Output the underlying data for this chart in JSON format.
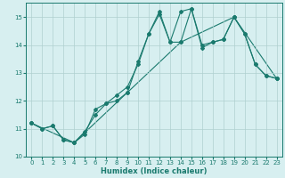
{
  "title": "",
  "xlabel": "Humidex (Indice chaleur)",
  "ylabel": "",
  "bg_color": "#d7eff0",
  "grid_color": "#afd0d0",
  "line_color": "#1a7a6e",
  "spine_color": "#1a7a6e",
  "tick_color": "#1a7a6e",
  "xlim": [
    -0.5,
    23.5
  ],
  "ylim": [
    10,
    15.5
  ],
  "yticks": [
    10,
    11,
    12,
    13,
    14,
    15
  ],
  "xticks": [
    0,
    1,
    2,
    3,
    4,
    5,
    6,
    7,
    8,
    9,
    10,
    11,
    12,
    13,
    14,
    15,
    16,
    17,
    18,
    19,
    20,
    21,
    22,
    23
  ],
  "series1_x": [
    0,
    1,
    2,
    3,
    4,
    5,
    6,
    7,
    8,
    9,
    10,
    11,
    12,
    13,
    14,
    15,
    16,
    17,
    18,
    19,
    20,
    21,
    22,
    23
  ],
  "series1_y": [
    11.2,
    11.0,
    11.1,
    10.6,
    10.5,
    10.8,
    11.7,
    11.9,
    12.0,
    12.3,
    13.4,
    14.4,
    15.2,
    14.1,
    15.2,
    15.3,
    14.0,
    14.1,
    14.2,
    15.0,
    14.4,
    13.3,
    12.9,
    12.8
  ],
  "series2_x": [
    0,
    1,
    2,
    3,
    4,
    5,
    6,
    7,
    8,
    9,
    10,
    11,
    12,
    13,
    14,
    15,
    16,
    17,
    18,
    19,
    20,
    21,
    22,
    23
  ],
  "series2_y": [
    11.2,
    11.0,
    11.1,
    10.6,
    10.5,
    10.9,
    11.5,
    11.9,
    12.2,
    12.5,
    13.3,
    14.4,
    15.1,
    14.1,
    14.1,
    15.3,
    13.9,
    14.1,
    14.2,
    15.0,
    14.4,
    13.3,
    12.9,
    12.8
  ],
  "series3_x": [
    0,
    4,
    9,
    14,
    19,
    23
  ],
  "series3_y": [
    11.2,
    10.5,
    12.3,
    14.1,
    15.0,
    12.8
  ],
  "marker_size": 2.0,
  "line_width": 0.8,
  "tick_labelsize": 5.0,
  "xlabel_fontsize": 6.0
}
